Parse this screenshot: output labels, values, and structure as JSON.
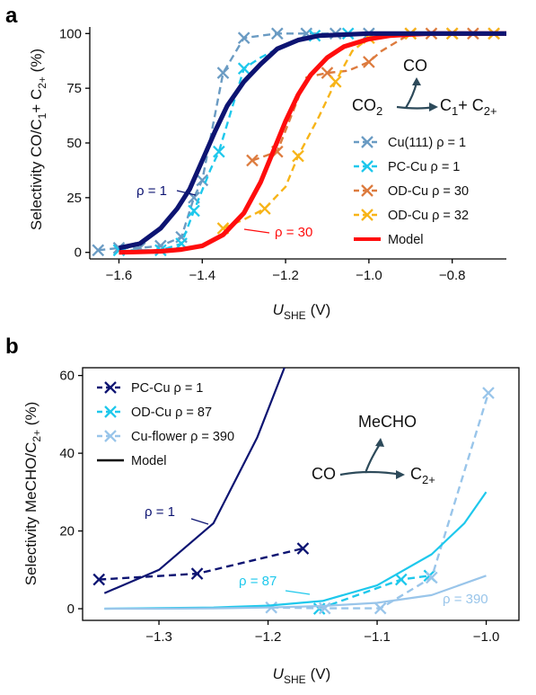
{
  "chart_data": [
    {
      "panel": "a",
      "type": "line",
      "xlabel": "U",
      "xlabel_sub": "SHE",
      "xlabel_unit": "(V)",
      "ylabel_parts": [
        "Selectivity CO/C",
        "1",
        "+ C",
        "2+",
        " (%)"
      ],
      "xlim": [
        -1.67,
        -0.67
      ],
      "ylim": [
        -3,
        103
      ],
      "xticks": [
        -1.6,
        -1.4,
        -1.2,
        -1.0,
        -0.8
      ],
      "xtick_labels": [
        "−1.6",
        "−1.4",
        "−1.2",
        "−1.0",
        "−0.8"
      ],
      "yticks": [
        0,
        25,
        50,
        75,
        100
      ],
      "ytick_labels": [
        "0",
        "25",
        "50",
        "75",
        "100"
      ],
      "series": [
        {
          "name": "Cu(111) ρ = 1",
          "color": "#6a9bc3",
          "style": "dashed-x",
          "x": [
            -1.65,
            -1.6,
            -1.55,
            -1.5,
            -1.45,
            -1.42,
            -1.4,
            -1.35,
            -1.3,
            -1.22,
            -1.15,
            -1.08,
            -1.0
          ],
          "y": [
            1,
            2,
            2,
            3,
            7,
            25,
            33,
            82,
            98,
            100,
            100,
            100,
            100
          ]
        },
        {
          "name": "PC-Cu ρ = 1",
          "color": "#1ec8ec",
          "style": "dashed-x",
          "x": [
            -1.6,
            -1.5,
            -1.45,
            -1.42,
            -1.38,
            -1.36,
            -1.3,
            -1.26,
            -1.2,
            -1.13,
            -1.07,
            -1.05
          ],
          "y": [
            1,
            1,
            4,
            19,
            38,
            46,
            84,
            89,
            95,
            99,
            100,
            100
          ],
          "marker_idx": [
            0,
            1,
            2,
            3,
            5,
            6,
            9,
            11
          ]
        },
        {
          "name": "OD-Cu ρ = 30",
          "color": "#dd7b3e",
          "style": "dashed-x",
          "x": [
            -1.28,
            -1.25,
            -1.22,
            -1.15,
            -1.1,
            -1.05,
            -1.0,
            -0.97,
            -0.9,
            -0.85,
            -0.8,
            -0.75,
            -0.7,
            -0.67
          ],
          "y": [
            42,
            44,
            46,
            80,
            82,
            83,
            87,
            92,
            100,
            100,
            100,
            100,
            100,
            100
          ],
          "marker_idx": [
            0,
            2,
            4,
            6,
            8,
            9,
            10,
            11,
            12
          ]
        },
        {
          "name": "OD-Cu ρ = 32",
          "color": "#f7b418",
          "style": "dashed-x",
          "x": [
            -1.35,
            -1.3,
            -1.25,
            -1.2,
            -1.17,
            -1.12,
            -1.08,
            -1.04,
            -1.0,
            -0.95,
            -0.9,
            -0.8,
            -0.7
          ],
          "y": [
            11,
            15,
            20,
            30,
            44,
            62,
            78,
            92,
            98,
            100,
            100,
            100,
            100
          ],
          "marker_idx": [
            0,
            2,
            4,
            6,
            8,
            10,
            11,
            12
          ]
        },
        {
          "name": "Model",
          "color": "#ff0d0d",
          "style": "solid",
          "x": [
            -1.6,
            -1.55,
            -1.5,
            -1.45,
            -1.4,
            -1.35,
            -1.3,
            -1.26,
            -1.23,
            -1.2,
            -1.17,
            -1.14,
            -1.1,
            -1.06,
            -1.0,
            -0.95,
            -0.9,
            -0.85,
            -0.8,
            -0.75,
            -0.7,
            -0.67
          ],
          "y": [
            0,
            0.2,
            0.5,
            1.3,
            3,
            8,
            18,
            32,
            46,
            60,
            72,
            81,
            89,
            94,
            97.5,
            99,
            99.6,
            100,
            100,
            100,
            100,
            100
          ]
        },
        {
          "name": "",
          "color": "#0d1472",
          "style": "solid",
          "x": [
            -1.6,
            -1.55,
            -1.5,
            -1.46,
            -1.43,
            -1.4,
            -1.37,
            -1.34,
            -1.3,
            -1.26,
            -1.22,
            -1.17,
            -1.12,
            -1.05,
            -1.0,
            -0.95,
            -0.9,
            -0.8,
            -0.7,
            -0.67
          ],
          "y": [
            2,
            4,
            11,
            20,
            29,
            42,
            55,
            67,
            78,
            86,
            93,
            97,
            99,
            99.6,
            100,
            100,
            100,
            100,
            100,
            100
          ]
        }
      ],
      "legend": [
        "Cu(111) ρ = 1",
        "PC-Cu ρ = 1",
        "OD-Cu ρ = 30",
        "OD-Cu ρ = 32",
        "Model"
      ],
      "legend_position": "lower-right",
      "annotations": [
        {
          "text": "ρ = 1",
          "color": "#0d1472"
        },
        {
          "text": "ρ = 30",
          "color": "#ff0d0d"
        }
      ],
      "scheme": {
        "reactant": "CO",
        "reactant_sub": "2",
        "top_product": "CO",
        "product_main": "C",
        "product_sub1": "1",
        "plus": "+ C",
        "product_sub2": "2+"
      }
    },
    {
      "panel": "b",
      "type": "line",
      "xlabel": "U",
      "xlabel_sub": "SHE",
      "xlabel_unit": "(V)",
      "ylabel_parts": [
        "Selectivity MeCHO/C",
        "2+",
        " (%)"
      ],
      "xlim": [
        -1.37,
        -0.97
      ],
      "ylim": [
        -3,
        62
      ],
      "xticks": [
        -1.3,
        -1.2,
        -1.1,
        -1.0
      ],
      "xtick_labels": [
        "−1.3",
        "−1.2",
        "−1.1",
        "−1.0"
      ],
      "yticks": [
        0,
        20,
        40,
        60
      ],
      "ytick_labels": [
        "0",
        "20",
        "40",
        "60"
      ],
      "series": [
        {
          "name": "PC-Cu ρ = 1",
          "color": "#0d1472",
          "style": "dashed-x",
          "x": [
            -1.355,
            -1.265,
            -1.168
          ],
          "y": [
            7.5,
            9,
            15.5
          ]
        },
        {
          "name": "OD-Cu ρ = 87",
          "color": "#1ec8ec",
          "style": "dashed-x",
          "x": [
            -1.153,
            -1.078,
            -1.052
          ],
          "y": [
            0,
            7.5,
            8.5
          ]
        },
        {
          "name": "Cu-flower ρ = 390",
          "color": "#99c5ea",
          "style": "dashed-x",
          "x": [
            -1.197,
            -1.148,
            -1.097,
            -1.05,
            -0.998
          ],
          "y": [
            0.3,
            0.1,
            0.1,
            8,
            55.5
          ]
        },
        {
          "name": "",
          "color": "#0d1472",
          "style": "solid",
          "x": [
            -1.35,
            -1.3,
            -1.25,
            -1.21,
            -1.185
          ],
          "y": [
            4,
            10,
            22,
            44,
            62
          ]
        },
        {
          "name": "",
          "color": "#1ec8ec",
          "style": "solid",
          "x": [
            -1.35,
            -1.25,
            -1.2,
            -1.15,
            -1.1,
            -1.05,
            -1.02,
            -1.0
          ],
          "y": [
            0,
            0.3,
            0.8,
            2,
            6,
            14,
            22,
            30
          ]
        },
        {
          "name": "",
          "color": "#99c5ea",
          "style": "solid",
          "x": [
            -1.35,
            -1.3,
            -1.25,
            -1.2,
            -1.15,
            -1.1,
            -1.05,
            -1.0
          ],
          "y": [
            0,
            0,
            0.1,
            0.3,
            0.7,
            1.5,
            3.5,
            8.5
          ]
        }
      ],
      "legend": [
        "PC-Cu ρ = 1",
        "OD-Cu ρ = 87",
        "Cu-flower ρ = 390",
        "Model"
      ],
      "legend_position": "top-left",
      "annotations": [
        {
          "text": "ρ = 1",
          "color": "#0d1472"
        },
        {
          "text": "ρ = 87",
          "color": "#1ec8ec"
        },
        {
          "text": "ρ = 390",
          "color": "#99c5ea"
        }
      ],
      "scheme": {
        "reactant": "CO",
        "top_product": "MeCHO",
        "product_main": "C",
        "product_sub": "2+"
      }
    }
  ],
  "panels": {
    "a": "a",
    "b": "b"
  }
}
